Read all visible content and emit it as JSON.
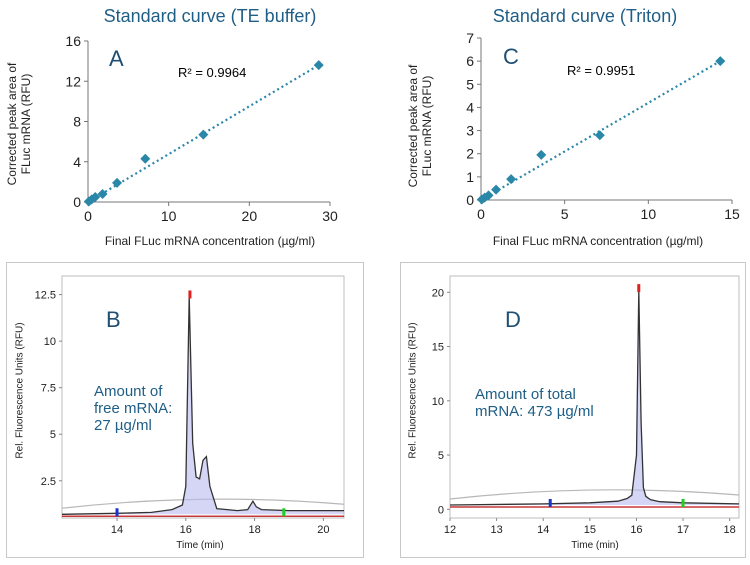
{
  "chart_data": [
    {
      "id": "A",
      "type": "scatter",
      "title": "Standard curve (TE buffer)",
      "panel_letter": "A",
      "annotation": "R² = 0.9964",
      "xlabel": "Final FLuc mRNA  concentration (µg/ml)",
      "ylabel": "Corrected peak area of FLuc mRNA  (RFU)",
      "xlim": [
        0,
        30
      ],
      "ylim": [
        0,
        16
      ],
      "xticks": [
        0,
        10,
        20,
        30
      ],
      "yticks": [
        0,
        4,
        8,
        12,
        16
      ],
      "x": [
        0.1,
        0.45,
        0.9,
        1.8,
        3.6,
        7.1,
        14.3,
        28.6
      ],
      "y": [
        0.05,
        0.25,
        0.5,
        0.8,
        1.9,
        4.3,
        6.7,
        13.6
      ],
      "trendline": {
        "x": [
          0,
          28.6
        ],
        "y": [
          0,
          13.6
        ]
      },
      "marker_color": "#2a87a8"
    },
    {
      "id": "C",
      "type": "scatter",
      "title": "Standard curve (Triton)",
      "panel_letter": "C",
      "annotation": "R² = 0.9951",
      "xlabel": "Final FLuc mRNA  concentration (µg/ml)",
      "ylabel": "Corrected peak area of FLuc mRNA  (RFU)",
      "xlim": [
        0,
        15
      ],
      "ylim": [
        0,
        7
      ],
      "xticks": [
        0,
        5,
        10,
        15
      ],
      "yticks": [
        0,
        1,
        2,
        3,
        4,
        5,
        6,
        7
      ],
      "x": [
        0.05,
        0.22,
        0.45,
        0.9,
        1.8,
        3.6,
        7.1,
        14.3
      ],
      "y": [
        0.02,
        0.1,
        0.2,
        0.45,
        0.9,
        1.95,
        2.8,
        6.0
      ],
      "trendline": {
        "x": [
          0,
          14.3
        ],
        "y": [
          0,
          6.0
        ]
      },
      "marker_color": "#2a87a8"
    },
    {
      "id": "B",
      "type": "line",
      "panel_letter": "B",
      "note_lines": [
        "Amount of",
        "free mRNA:",
        "27 µg/ml"
      ],
      "xlabel": "Time (min)",
      "ylabel": "Rel. Fluorescence Units (RFU)",
      "xlim": [
        12.4,
        20.6
      ],
      "ylim": [
        0.5,
        13.5
      ],
      "xticks": [
        14,
        16,
        18,
        20
      ],
      "yticks": [
        2.5,
        5,
        7.5,
        10,
        12.5
      ],
      "ytick_labels": [
        "2.5",
        "5",
        "7.5",
        "10",
        "12.5"
      ],
      "x": [
        12.4,
        14.0,
        15.0,
        15.6,
        15.9,
        16.0,
        16.1,
        16.2,
        16.3,
        16.4,
        16.5,
        16.6,
        16.7,
        16.9,
        17.5,
        17.8,
        17.95,
        18.05,
        18.2,
        19.0,
        20.6
      ],
      "y": [
        0.7,
        0.75,
        0.8,
        0.95,
        1.2,
        2.2,
        12.4,
        4.5,
        2.7,
        2.6,
        3.6,
        3.8,
        2.2,
        1.0,
        0.9,
        0.95,
        1.4,
        1.1,
        0.95,
        0.9,
        0.9
      ],
      "markers": [
        {
          "x": 14.0,
          "color": "#1a33cc"
        },
        {
          "x": 16.12,
          "color": "#e02020"
        },
        {
          "x": 18.85,
          "color": "#22cc22"
        }
      ],
      "line_color": "#333333",
      "baseline_color": "#c8383a"
    },
    {
      "id": "D",
      "type": "line",
      "panel_letter": "D",
      "note_lines": [
        "Amount of total",
        "mRNA:  473 µg/ml"
      ],
      "xlabel": "Time (min)",
      "ylabel": "Rel. Fluorescence Units (RFU)",
      "xlim": [
        12,
        18.2
      ],
      "ylim": [
        -0.8,
        21.5
      ],
      "xticks": [
        12,
        13,
        14,
        15,
        16,
        17,
        18
      ],
      "yticks": [
        0,
        5,
        10,
        15,
        20
      ],
      "ytick_labels": [
        "0",
        "5",
        "10",
        "15",
        "20"
      ],
      "x": [
        12,
        14,
        15,
        15.6,
        15.8,
        15.9,
        16.0,
        16.05,
        16.1,
        16.15,
        16.2,
        16.3,
        16.5,
        17,
        18.2
      ],
      "y": [
        0.4,
        0.5,
        0.6,
        0.75,
        1.0,
        1.3,
        5.0,
        20.2,
        8.0,
        2.0,
        1.2,
        0.9,
        0.7,
        0.6,
        0.5
      ],
      "markers": [
        {
          "x": 14.15,
          "color": "#1a33cc"
        },
        {
          "x": 16.05,
          "color": "#e02020"
        },
        {
          "x": 17.0,
          "color": "#22cc22"
        }
      ],
      "line_color": "#333333",
      "baseline_color": "#c8383a"
    }
  ]
}
